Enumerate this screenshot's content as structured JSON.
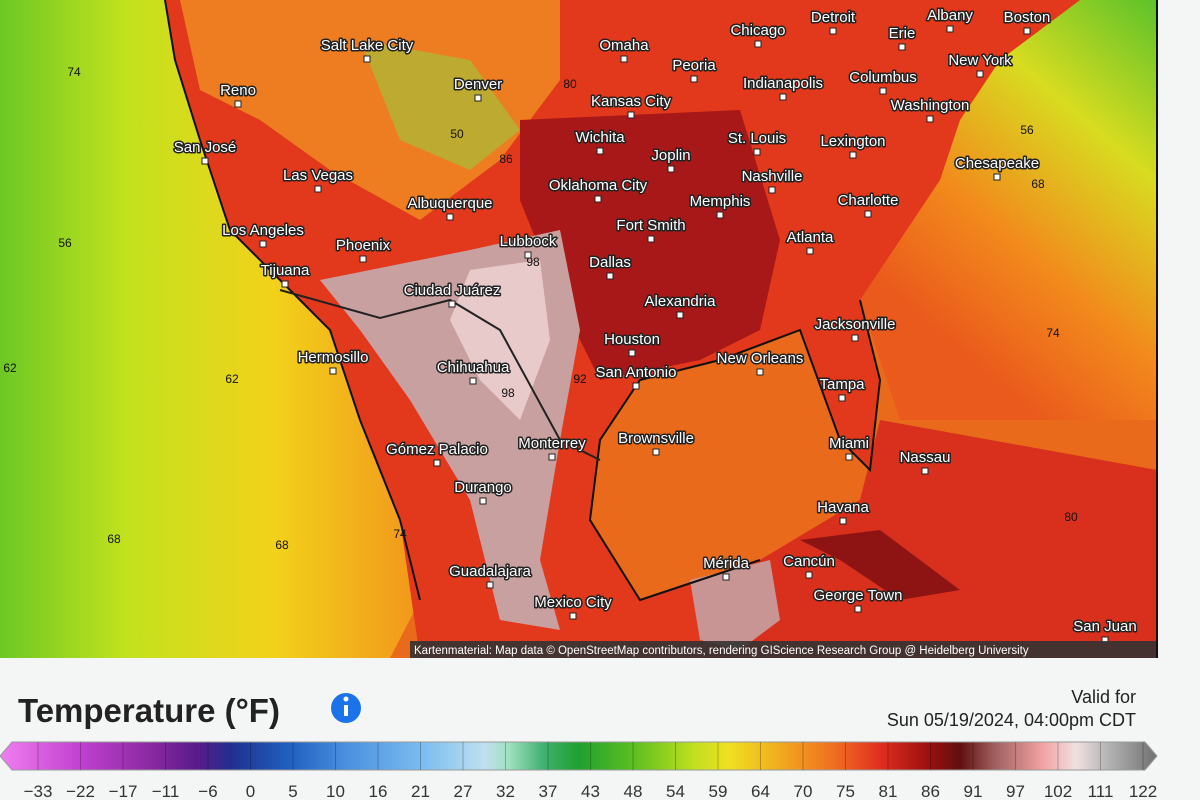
{
  "map": {
    "cities": [
      "Chicago",
      "Detroit",
      "Albany",
      "Boston",
      "Omaha",
      "Erie",
      "New York",
      "Peoria",
      "Columbus",
      "Salt Lake City",
      "Denver",
      "Reno",
      "Indianapolis",
      "Kansas City",
      "Washington",
      "San José",
      "Wichita",
      "St. Louis",
      "Lexington",
      "Joplin",
      "Las Vegas",
      "Oklahoma City",
      "Nashville",
      "Chesapeake",
      "Memphis",
      "Charlotte",
      "Albuquerque",
      "Fort Smith",
      "Los Angeles",
      "Atlanta",
      "Lubbock",
      "Phoenix",
      "Dallas",
      "Tijuana",
      "Ciudad Juárez",
      "Alexandria",
      "Jacksonville",
      "Houston",
      "Hermosillo",
      "New Orleans",
      "Chihuahua",
      "San Antonio",
      "Tampa",
      "Brownsville",
      "Monterrey",
      "Miami",
      "Gómez Palacio",
      "Nassau",
      "Durango",
      "Havana",
      "Cancún",
      "Mérida",
      "Guadalajara",
      "George Town",
      "Mexico City",
      "San Juan"
    ],
    "contour_labels": [
      "56",
      "62",
      "62",
      "68",
      "68",
      "74",
      "56",
      "68",
      "80",
      "74",
      "92",
      "98",
      "98",
      "50",
      "74",
      "80",
      "86"
    ],
    "attribution": "Kartenmaterial: Map data © OpenStreetMap contributors, rendering GIScience Research Group @ Heidelberg University"
  },
  "legend": {
    "title": "Temperature (°F)",
    "valid_label": "Valid for",
    "valid_time": "Sun 05/19/2024, 04:00pm CDT",
    "ticks": [
      "−33",
      "−22",
      "−17",
      "−11",
      "−6",
      "0",
      "5",
      "10",
      "16",
      "21",
      "27",
      "32",
      "37",
      "43",
      "48",
      "54",
      "59",
      "64",
      "70",
      "75",
      "81",
      "86",
      "91",
      "97",
      "102",
      "111",
      "122"
    ]
  }
}
